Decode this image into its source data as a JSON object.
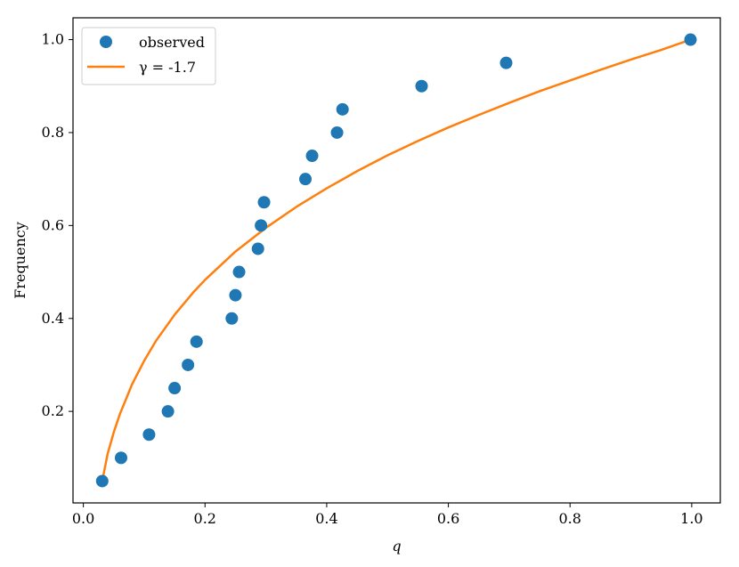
{
  "chart_data": {
    "type": "scatter",
    "title": "",
    "xlabel": "q",
    "ylabel": "Frequency",
    "xlim": [
      -0.017,
      1.047
    ],
    "ylim": [
      0.003,
      1.047
    ],
    "xticks": [
      0.0,
      0.2,
      0.4,
      0.6,
      0.8,
      1.0
    ],
    "yticks": [
      0.2,
      0.4,
      0.6,
      0.8,
      1.0
    ],
    "xtick_labels": [
      "0.0",
      "0.2",
      "0.4",
      "0.6",
      "0.8",
      "1.0"
    ],
    "ytick_labels": [
      "0.2",
      "0.4",
      "0.6",
      "0.8",
      "1.0"
    ],
    "grid": false,
    "legend_position": "top-left",
    "series": [
      {
        "name": "observed",
        "kind": "scatter",
        "color": "#1f77b4",
        "points": [
          [
            0.031,
            0.05
          ],
          [
            0.062,
            0.1
          ],
          [
            0.108,
            0.15
          ],
          [
            0.139,
            0.2
          ],
          [
            0.15,
            0.25
          ],
          [
            0.172,
            0.3
          ],
          [
            0.186,
            0.35
          ],
          [
            0.244,
            0.4
          ],
          [
            0.25,
            0.45
          ],
          [
            0.256,
            0.5
          ],
          [
            0.287,
            0.55
          ],
          [
            0.292,
            0.6
          ],
          [
            0.297,
            0.65
          ],
          [
            0.365,
            0.7
          ],
          [
            0.376,
            0.75
          ],
          [
            0.417,
            0.8
          ],
          [
            0.426,
            0.85
          ],
          [
            0.556,
            0.9
          ],
          [
            0.695,
            0.95
          ],
          [
            0.998,
            1.0
          ]
        ]
      },
      {
        "name": "γ = -1.7",
        "kind": "line",
        "color": "#ff7f0e",
        "points": [
          [
            0.031,
            0.05
          ],
          [
            0.04,
            0.109
          ],
          [
            0.05,
            0.155
          ],
          [
            0.06,
            0.194
          ],
          [
            0.08,
            0.258
          ],
          [
            0.1,
            0.309
          ],
          [
            0.12,
            0.353
          ],
          [
            0.15,
            0.408
          ],
          [
            0.18,
            0.455
          ],
          [
            0.2,
            0.483
          ],
          [
            0.25,
            0.544
          ],
          [
            0.3,
            0.595
          ],
          [
            0.35,
            0.64
          ],
          [
            0.4,
            0.68
          ],
          [
            0.45,
            0.717
          ],
          [
            0.5,
            0.751
          ],
          [
            0.55,
            0.782
          ],
          [
            0.6,
            0.811
          ],
          [
            0.65,
            0.838
          ],
          [
            0.7,
            0.864
          ],
          [
            0.75,
            0.889
          ],
          [
            0.8,
            0.912
          ],
          [
            0.85,
            0.935
          ],
          [
            0.9,
            0.957
          ],
          [
            0.95,
            0.978
          ],
          [
            0.998,
            1.0
          ]
        ]
      }
    ]
  }
}
